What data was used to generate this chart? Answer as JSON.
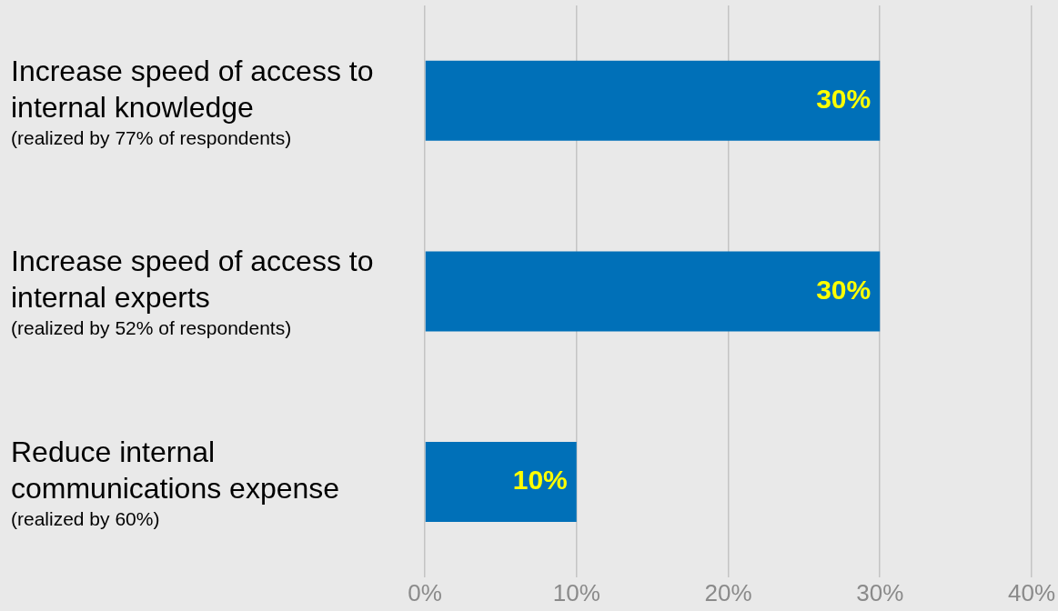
{
  "chart_data": {
    "type": "bar",
    "orientation": "horizontal",
    "categories": [
      "Increase speed of access to internal knowledge\n(realized by 77% of respondents)",
      "Increase speed of access to internal experts\n(realized by 52% of respondents)",
      "Reduce internal communications expense\n(realized by 60%)"
    ],
    "values": [
      30,
      30,
      10
    ],
    "color": "#0070b8",
    "value_labels": [
      "30%",
      "30%",
      "10%"
    ],
    "xlim": [
      0,
      40
    ],
    "xticks": [
      {
        "value": 0,
        "label": "0%"
      },
      {
        "value": 10,
        "label": "10%"
      },
      {
        "value": 20,
        "label": "20%"
      },
      {
        "value": 30,
        "label": "30%"
      },
      {
        "value": 40,
        "label": "40%"
      }
    ],
    "grid": "x"
  }
}
